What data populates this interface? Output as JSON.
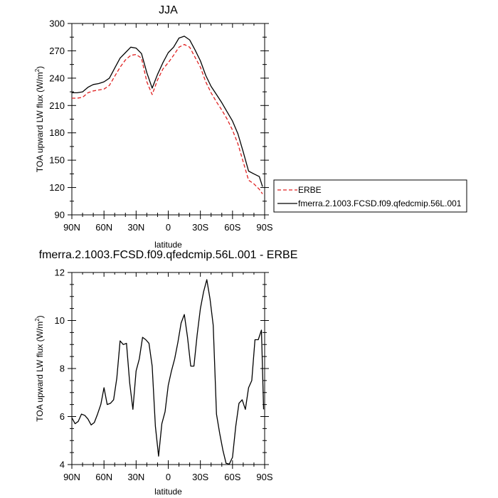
{
  "chart_data": [
    {
      "type": "line",
      "title": "JJA",
      "xlabel": "latitude",
      "ylabel": "TOA upward LW flux (W/m",
      "ylabel_sup": "2",
      "ylabel_end": ")",
      "x_tick_labels": [
        "90N",
        "60N",
        "30N",
        "0",
        "30S",
        "60S",
        "90S"
      ],
      "x_tick_values": [
        90,
        60,
        30,
        0,
        -30,
        -60,
        -90
      ],
      "xlim": [
        90,
        -90
      ],
      "y_tick_labels": [
        "90",
        "120",
        "150",
        "180",
        "210",
        "240",
        "270",
        "300"
      ],
      "y_tick_values": [
        90,
        120,
        150,
        180,
        210,
        240,
        270,
        300
      ],
      "ylim": [
        90,
        300
      ],
      "legend_position": "right",
      "series": [
        {
          "name": "ERBE",
          "color": "#e02020",
          "dash": true,
          "x": [
            90,
            85,
            80,
            75,
            70,
            65,
            60,
            55,
            50,
            45,
            40,
            35,
            30,
            25,
            20,
            15,
            10,
            5,
            0,
            -5,
            -10,
            -15,
            -20,
            -25,
            -30,
            -35,
            -40,
            -45,
            -50,
            -55,
            -60,
            -65,
            -70,
            -75,
            -80,
            -85,
            -88
          ],
          "y": [
            218,
            218,
            219,
            224,
            226,
            227,
            228,
            232,
            242,
            252,
            260,
            265,
            266,
            262,
            236,
            222,
            238,
            250,
            257,
            265,
            274,
            277,
            274,
            263,
            252,
            236,
            224,
            214,
            205,
            195,
            183,
            168,
            148,
            128,
            124,
            118,
            113
          ]
        },
        {
          "name": "fmerra.2.1003.FCSD.f09.qfedcmip.56L.001",
          "color": "#000000",
          "dash": false,
          "x": [
            90,
            85,
            80,
            75,
            70,
            65,
            60,
            55,
            50,
            45,
            40,
            35,
            30,
            25,
            20,
            15,
            10,
            5,
            0,
            -5,
            -10,
            -15,
            -20,
            -25,
            -30,
            -35,
            -40,
            -45,
            -50,
            -55,
            -60,
            -65,
            -70,
            -75,
            -80,
            -85,
            -88
          ],
          "y": [
            224,
            224,
            225,
            230,
            233,
            234,
            236,
            240,
            251,
            262,
            268,
            274,
            273,
            267,
            246,
            229,
            244,
            257,
            268,
            274,
            284,
            286,
            282,
            271,
            259,
            243,
            231,
            222,
            213,
            203,
            193,
            179,
            159,
            138,
            135,
            132,
            121
          ]
        }
      ]
    },
    {
      "type": "line",
      "title": "fmerra.2.1003.FCSD.f09.qfedcmip.56L.001 - ERBE",
      "xlabel": "latitude",
      "ylabel": "TOA upward LW flux (W/m",
      "ylabel_sup": "2",
      "ylabel_end": ")",
      "x_tick_labels": [
        "90N",
        "60N",
        "30N",
        "0",
        "30S",
        "60S",
        "90S"
      ],
      "x_tick_values": [
        90,
        60,
        30,
        0,
        -30,
        -60,
        -90
      ],
      "xlim": [
        90,
        -90
      ],
      "y_tick_labels": [
        "4",
        "6",
        "8",
        "10",
        "12"
      ],
      "y_tick_values": [
        4,
        6,
        8,
        10,
        12
      ],
      "ylim": [
        4,
        12
      ],
      "series": [
        {
          "color": "#000000",
          "dash": false,
          "x": [
            90,
            87,
            84,
            81,
            78,
            75,
            72,
            69,
            66,
            63,
            60,
            57,
            54,
            51,
            48,
            45,
            42,
            39,
            36,
            33,
            30,
            27,
            24,
            21,
            18,
            15,
            12,
            9,
            6,
            3,
            0,
            -3,
            -6,
            -9,
            -12,
            -15,
            -18,
            -21,
            -24,
            -27,
            -30,
            -33,
            -36,
            -39,
            -42,
            -45,
            -48,
            -51,
            -54,
            -57,
            -60,
            -63,
            -66,
            -69,
            -72,
            -75,
            -78,
            -81,
            -84,
            -87,
            -89
          ],
          "y": [
            5.95,
            5.7,
            5.8,
            6.1,
            6.05,
            5.9,
            5.65,
            5.75,
            6.1,
            6.5,
            7.2,
            6.5,
            6.55,
            6.7,
            7.6,
            9.15,
            9.0,
            9.05,
            7.4,
            6.3,
            7.9,
            8.4,
            9.3,
            9.2,
            9.05,
            8.1,
            5.6,
            4.35,
            5.7,
            6.2,
            7.3,
            7.9,
            8.4,
            9.1,
            9.9,
            10.25,
            9.3,
            8.1,
            8.1,
            9.4,
            10.5,
            11.2,
            11.7,
            10.9,
            9.8,
            6.1,
            5.3,
            4.6,
            4.05,
            4.02,
            4.3,
            5.6,
            6.55,
            6.7,
            6.3,
            7.2,
            7.5,
            9.2,
            9.2,
            9.6,
            6.3
          ]
        }
      ]
    }
  ]
}
